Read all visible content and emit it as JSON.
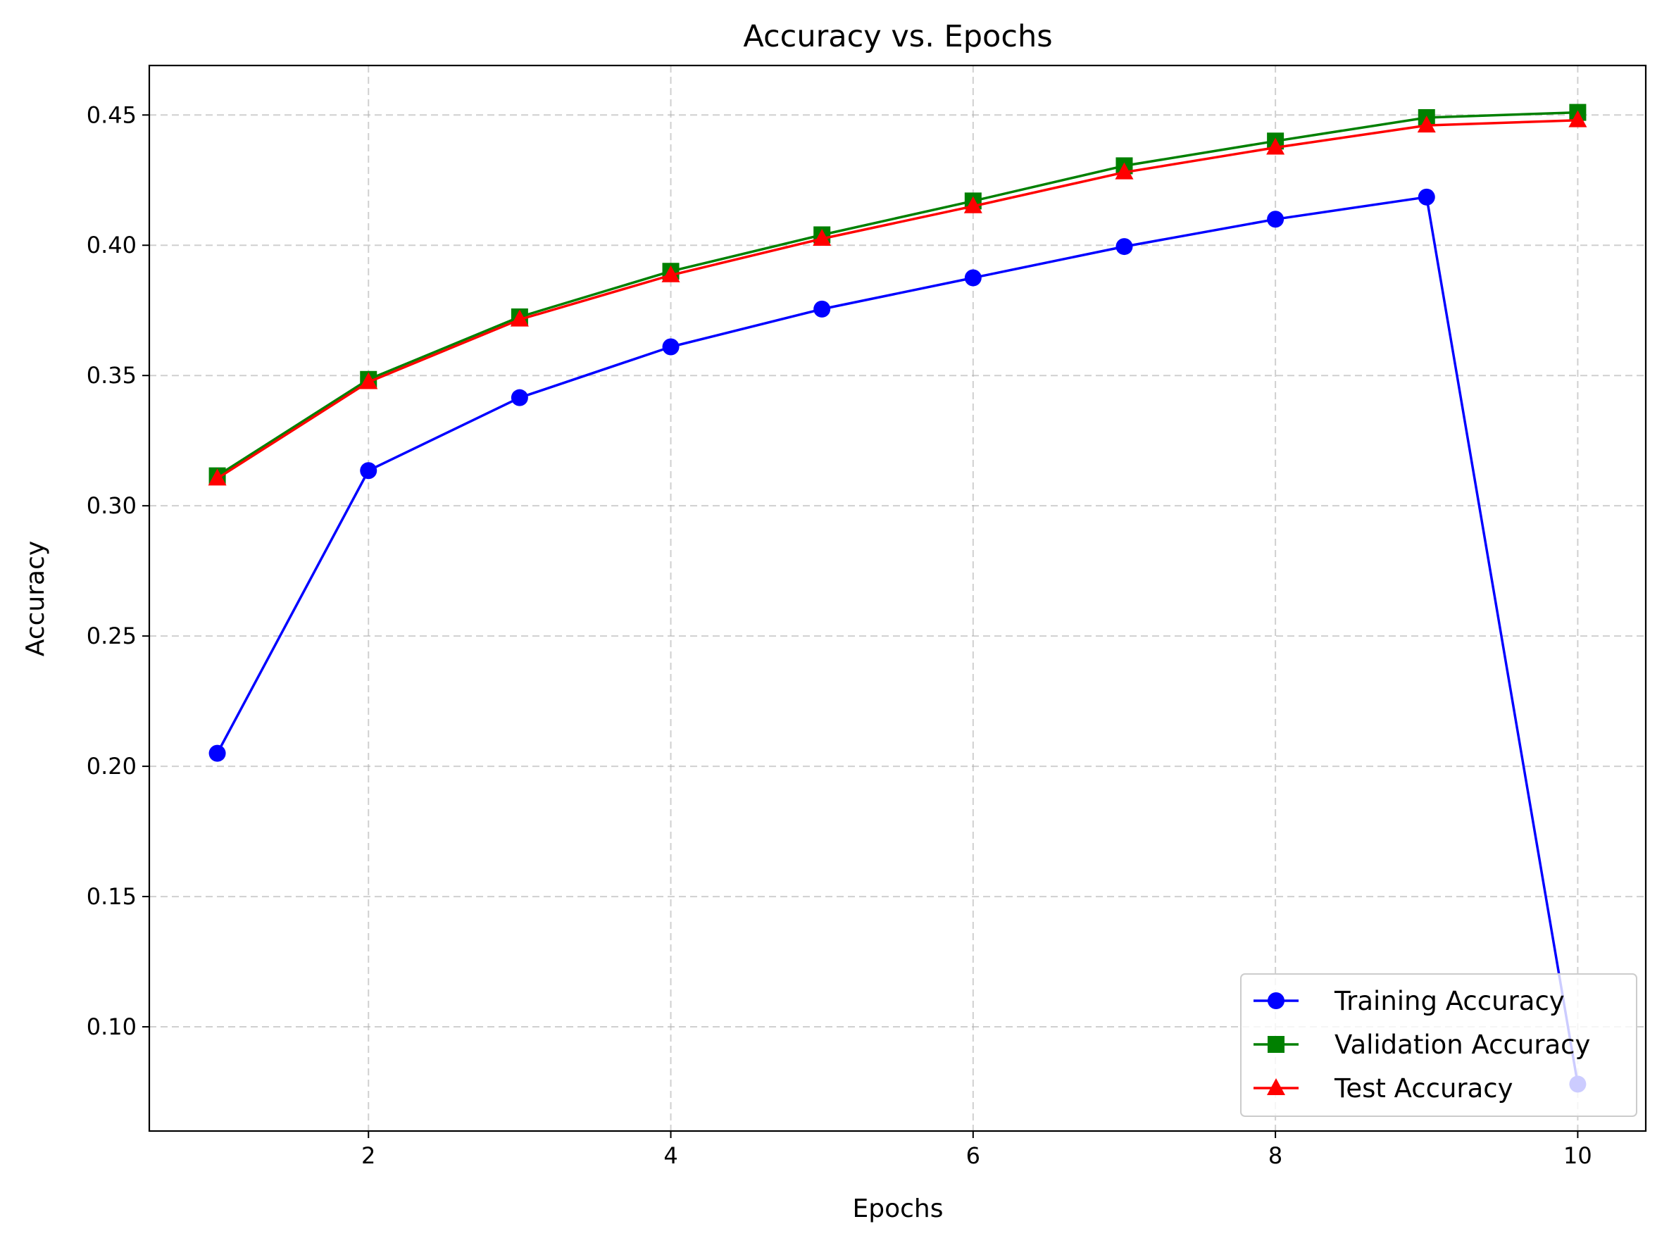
{
  "chart_data": {
    "type": "line",
    "title": "Accuracy vs. Epochs",
    "xlabel": "Epochs",
    "ylabel": "Accuracy",
    "x": [
      1,
      2,
      3,
      4,
      5,
      6,
      7,
      8,
      9,
      10
    ],
    "xlim": [
      0.55,
      10.45
    ],
    "ylim": [
      0.06,
      0.469
    ],
    "xticks": [
      2,
      4,
      6,
      8,
      10
    ],
    "xtick_labels": [
      "2",
      "4",
      "6",
      "8",
      "10"
    ],
    "yticks": [
      0.1,
      0.15,
      0.2,
      0.25,
      0.3,
      0.35,
      0.4,
      0.45
    ],
    "ytick_labels": [
      "0.10",
      "0.15",
      "0.20",
      "0.25",
      "0.30",
      "0.35",
      "0.40",
      "0.45"
    ],
    "grid": true,
    "legend_position": "bottom-right",
    "series": [
      {
        "name": "Training Accuracy",
        "color": "#0000ff",
        "marker": "circle",
        "values": [
          0.205,
          0.3135,
          0.3415,
          0.361,
          0.3755,
          0.3875,
          0.3995,
          0.41,
          0.4185,
          0.078
        ]
      },
      {
        "name": "Validation Accuracy",
        "color": "#008000",
        "marker": "square",
        "values": [
          0.3115,
          0.3485,
          0.3725,
          0.39,
          0.404,
          0.417,
          0.4305,
          0.44,
          0.449,
          0.451
        ]
      },
      {
        "name": "Test Accuracy",
        "color": "#ff0000",
        "marker": "triangle",
        "values": [
          0.3105,
          0.3475,
          0.3715,
          0.3885,
          0.4025,
          0.415,
          0.428,
          0.4375,
          0.446,
          0.448
        ]
      }
    ]
  }
}
